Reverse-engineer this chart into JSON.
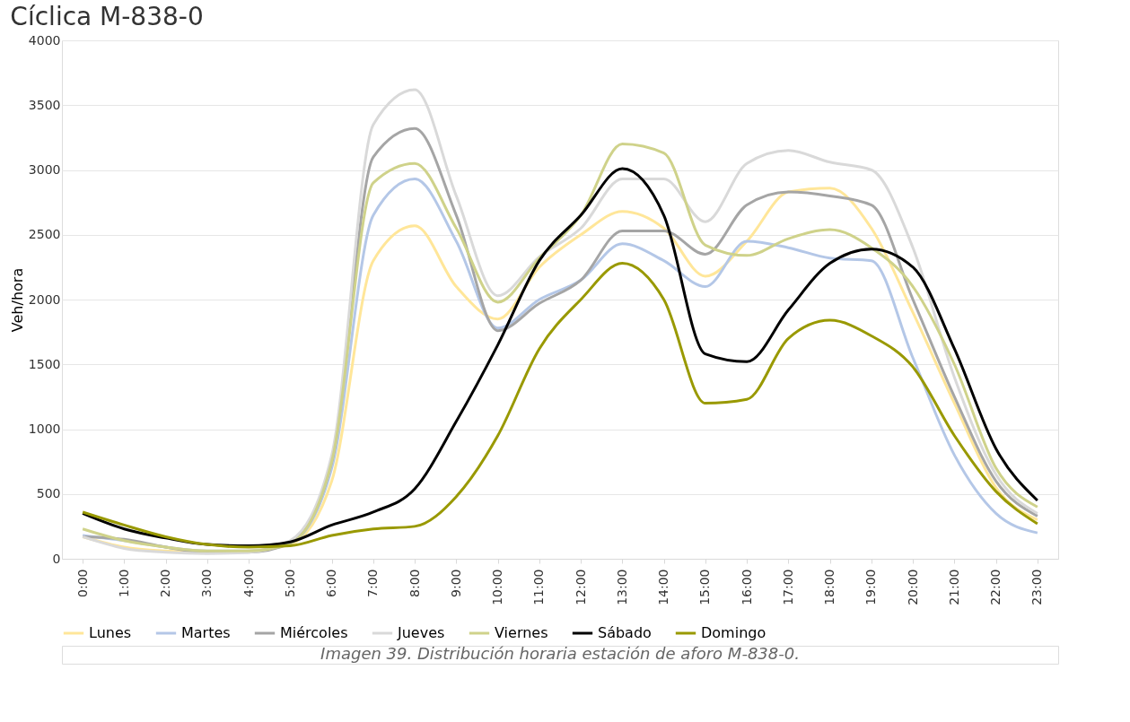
{
  "chart_data": {
    "type": "line",
    "title": "Cíclica M-838-0",
    "ylabel": "Veh/hora",
    "annotations": [
      "Imagen 39. Distribución horaria estación de aforo M-838-0."
    ],
    "categories": [
      "0:00",
      "1:00",
      "2:00",
      "3:00",
      "4:00",
      "5:00",
      "6:00",
      "7:00",
      "8:00",
      "9:00",
      "10:00",
      "11:00",
      "12:00",
      "13:00",
      "14:00",
      "15:00",
      "16:00",
      "17:00",
      "18:00",
      "19:00",
      "20:00",
      "21:00",
      "22:00",
      "23:00"
    ],
    "ylim": [
      0,
      4000
    ],
    "yticks": [
      0,
      500,
      1000,
      1500,
      2000,
      2500,
      3000,
      3500,
      4000
    ],
    "grid": "y",
    "legend": "bottom",
    "marker": "none",
    "line_style": "solid",
    "series": [
      {
        "name": "Lunes",
        "color": "#ffe699",
        "values": [
          170,
          90,
          60,
          50,
          60,
          110,
          600,
          2300,
          2570,
          2100,
          1850,
          2250,
          2500,
          2680,
          2550,
          2180,
          2450,
          2830,
          2860,
          2550,
          1900,
          1200,
          550,
          300
        ]
      },
      {
        "name": "Martes",
        "color": "#b4c7e7",
        "values": [
          180,
          140,
          90,
          60,
          60,
          120,
          700,
          2650,
          2930,
          2450,
          1780,
          2000,
          2150,
          2430,
          2300,
          2100,
          2450,
          2400,
          2320,
          2300,
          1550,
          800,
          350,
          200
        ]
      },
      {
        "name": "Miércoles",
        "color": "#a5a5a5",
        "values": [
          170,
          150,
          90,
          50,
          50,
          120,
          750,
          3100,
          3320,
          2650,
          1760,
          1970,
          2150,
          2530,
          2530,
          2350,
          2730,
          2830,
          2800,
          2730,
          2000,
          1250,
          600,
          330
        ]
      },
      {
        "name": "Jueves",
        "color": "#d9d9d9",
        "values": [
          170,
          80,
          50,
          40,
          50,
          140,
          800,
          3350,
          3620,
          2800,
          2030,
          2330,
          2550,
          2930,
          2930,
          2600,
          3050,
          3150,
          3060,
          3000,
          2400,
          1400,
          650,
          350
        ]
      },
      {
        "name": "Viernes",
        "color": "#cfd28a",
        "values": [
          230,
          140,
          90,
          60,
          60,
          120,
          750,
          2900,
          3050,
          2550,
          1980,
          2320,
          2650,
          3200,
          3130,
          2420,
          2340,
          2470,
          2540,
          2400,
          2100,
          1500,
          700,
          400
        ]
      },
      {
        "name": "Sábado",
        "color": "#000000",
        "values": [
          350,
          230,
          160,
          110,
          100,
          130,
          260,
          360,
          540,
          1060,
          1650,
          2300,
          2650,
          3010,
          2650,
          1580,
          1520,
          1920,
          2280,
          2390,
          2250,
          1620,
          850,
          450
        ]
      },
      {
        "name": "Domingo",
        "color": "#999900",
        "values": [
          360,
          260,
          170,
          110,
          90,
          100,
          180,
          230,
          250,
          480,
          950,
          1620,
          2000,
          2280,
          2000,
          1200,
          1230,
          1700,
          1840,
          1720,
          1480,
          950,
          520,
          270
        ]
      }
    ]
  }
}
